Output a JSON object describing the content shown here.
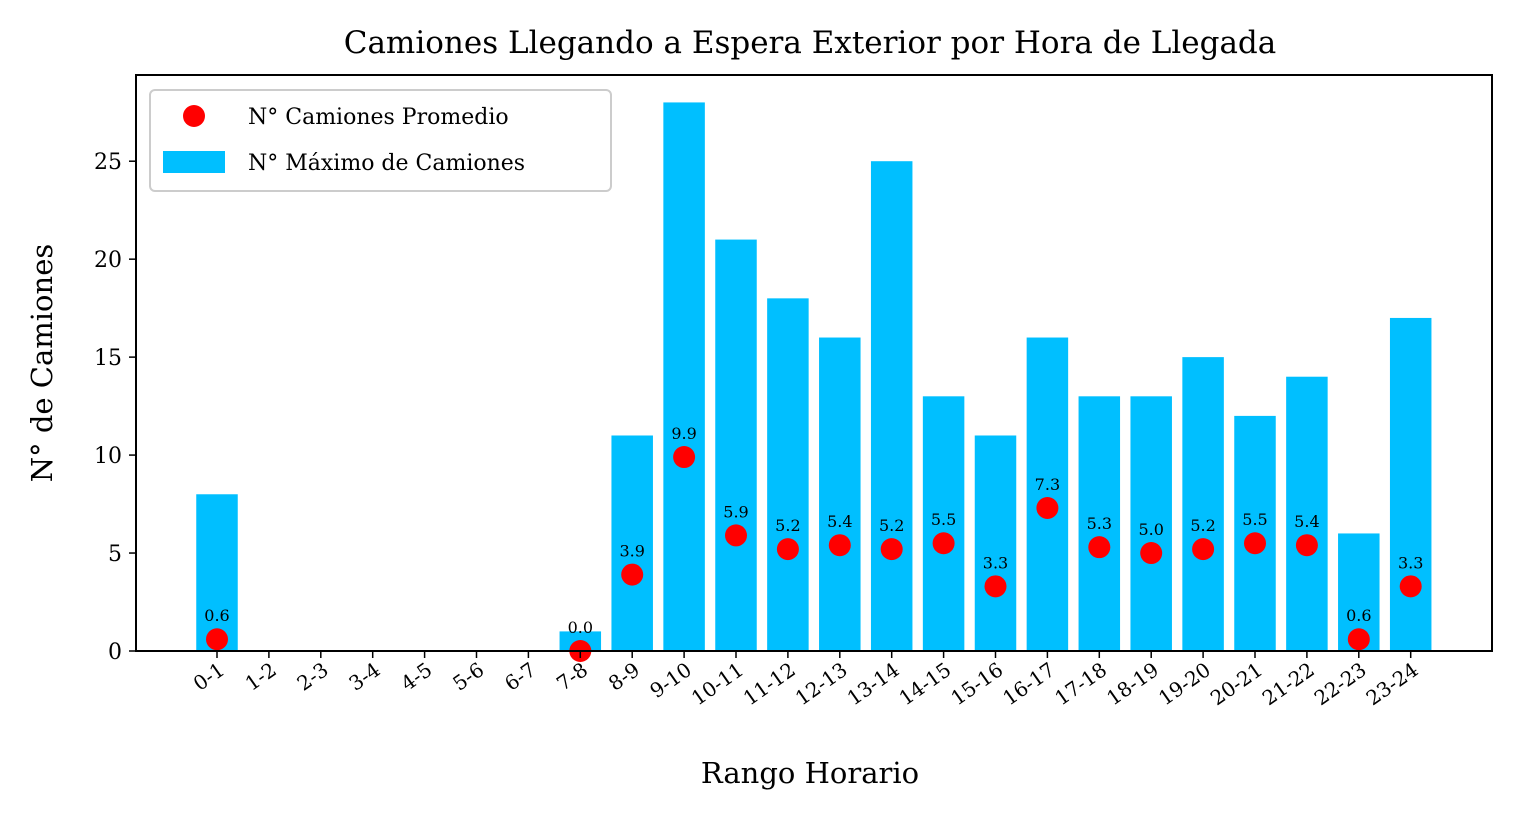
{
  "chart_data": {
    "type": "bar",
    "title": "Camiones Llegando a Espera Exterior por Hora de Llegada",
    "xlabel": "Rango Horario",
    "ylabel": "N° de Camiones",
    "categories": [
      "0-1",
      "1-2",
      "2-3",
      "3-4",
      "4-5",
      "5-6",
      "6-7",
      "7-8",
      "8-9",
      "9-10",
      "10-11",
      "11-12",
      "12-13",
      "13-14",
      "14-15",
      "15-16",
      "16-17",
      "17-18",
      "18-19",
      "19-20",
      "20-21",
      "21-22",
      "22-23",
      "23-24"
    ],
    "series": [
      {
        "name": "N° Máximo de Camiones",
        "kind": "bar",
        "color": "#00bfff",
        "values": [
          8,
          0,
          0,
          0,
          0,
          0,
          0,
          1,
          11,
          28,
          21,
          18,
          16,
          25,
          13,
          11,
          16,
          13,
          13,
          15,
          12,
          14,
          6,
          17
        ]
      },
      {
        "name": "N° Camiones Promedio",
        "kind": "point",
        "color": "#ff0000",
        "values": [
          0.6,
          null,
          null,
          null,
          null,
          null,
          null,
          0.0,
          3.9,
          9.9,
          5.9,
          5.2,
          5.4,
          5.2,
          5.5,
          3.3,
          7.3,
          5.3,
          5.0,
          5.2,
          5.5,
          5.4,
          0.6,
          3.3
        ]
      }
    ],
    "ylim": [
      0,
      29.4
    ],
    "yticks": [
      0,
      5,
      10,
      15,
      20,
      25
    ],
    "grid": false,
    "legend_position": "top-left"
  }
}
